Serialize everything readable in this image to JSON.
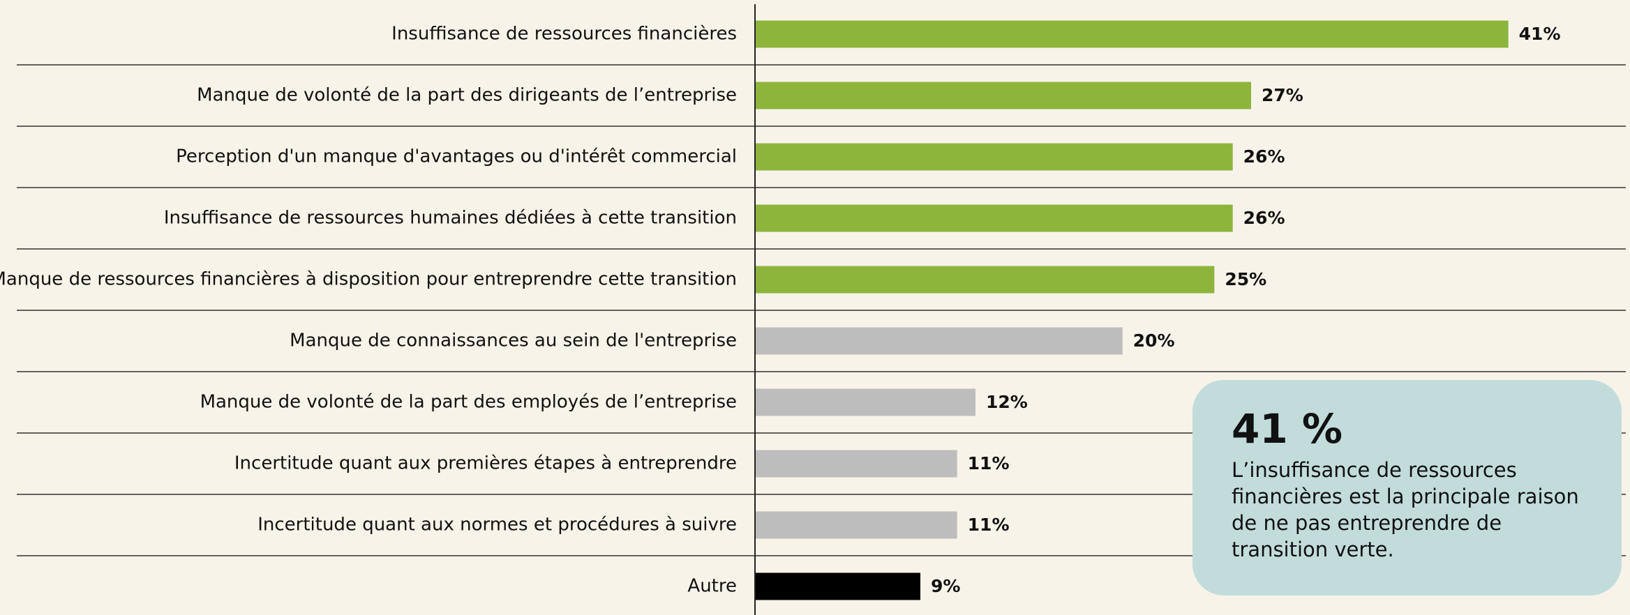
{
  "chart_data": {
    "type": "barh",
    "categories": [
      "Insuffisance de ressources financières",
      "Manque de volonté de la part des dirigeants de l’entreprise",
      "Perception d'un manque d'avantages ou d'intérêt commercial",
      "Insuffisance de ressources humaines dédiées à cette transition",
      "Manque de ressources financières à disposition pour entreprendre cette transition",
      "Manque de connaissances au sein de l'entreprise",
      "Manque de volonté de la part des employés de l’entreprise",
      "Incertitude quant aux premières étapes à entreprendre",
      "Incertitude quant aux normes et procédures à suivre",
      "Autre"
    ],
    "values": [
      41,
      27,
      26,
      26,
      25,
      20,
      12,
      11,
      11,
      9
    ],
    "value_labels": [
      "41%",
      "27%",
      "26%",
      "26%",
      "25%",
      "20%",
      "12%",
      "11%",
      "11%",
      "9%"
    ],
    "colors": [
      "#8db53c",
      "#8db53c",
      "#8db53c",
      "#8db53c",
      "#8db53c",
      "#bdbdbd",
      "#bdbdbd",
      "#bdbdbd",
      "#bdbdbd",
      "#000000"
    ],
    "xlim": [
      0,
      45
    ],
    "annotation": {
      "title": "41 %",
      "text": "L’insuffisance de ressources financières est la principale raison de ne pas entreprendre de transition verte."
    }
  }
}
